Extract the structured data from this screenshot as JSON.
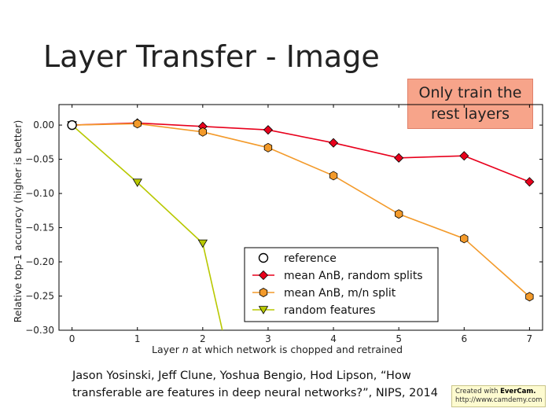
{
  "slide": {
    "title": "Layer Transfer - Image",
    "callout_line1": "Only train the",
    "callout_line2": "rest layers",
    "citation_line1": "Jason Yosinski, Jeff Clune, Yoshua Bengio, Hod Lipson, “How",
    "citation_line2": "transferable are features in deep neural networks?”, NIPS, 2014",
    "watermark_prefix": "Created with ",
    "watermark_brand": "EverCam.",
    "watermark_url": "http://www.camdemy.com",
    "callout_color": "#f7a48a"
  },
  "chart_data": {
    "type": "line",
    "xlabel_prefix": "Layer ",
    "xlabel_var": "n",
    "xlabel_suffix": " at which network is chopped and retrained",
    "ylabel": "Relative top-1 accuracy (higher is better)",
    "xlim": [
      -0.2,
      7.2
    ],
    "ylim": [
      -0.3,
      0.03
    ],
    "x_ticks": [
      0,
      1,
      2,
      3,
      4,
      5,
      6,
      7
    ],
    "x_tick_labels": [
      "0",
      "1",
      "2",
      "3",
      "4",
      "5",
      "6",
      "7"
    ],
    "y_ticks": [
      0.0,
      -0.05,
      -0.1,
      -0.15,
      -0.2,
      -0.25,
      -0.3
    ],
    "y_tick_labels": [
      "0.00",
      "−0.05",
      "−0.10",
      "−0.15",
      "−0.20",
      "−0.25",
      "−0.30"
    ],
    "grid": false,
    "legend_position": "bottom-center",
    "series": [
      {
        "name": "reference",
        "marker": "circle",
        "color": "#ffffff",
        "line_color": "#000000",
        "x": [
          0
        ],
        "y": [
          0.0
        ]
      },
      {
        "name": "mean AnB, random splits",
        "marker": "diamond",
        "color": "#e8001c",
        "line_color": "#e8001c",
        "x": [
          0,
          1,
          2,
          3,
          4,
          5,
          6,
          7
        ],
        "y": [
          0.0,
          0.003,
          -0.002,
          -0.007,
          -0.026,
          -0.048,
          -0.045,
          -0.083
        ]
      },
      {
        "name": "mean AnB, m/n split",
        "marker": "hexagon",
        "color": "#f39a2a",
        "line_color": "#f39a2a",
        "x": [
          0,
          1,
          2,
          3,
          4,
          5,
          6,
          7
        ],
        "y": [
          0.0,
          0.002,
          -0.01,
          -0.033,
          -0.074,
          -0.13,
          -0.166,
          -0.251
        ]
      },
      {
        "name": "random features",
        "marker": "triangle-down",
        "color": "#b8c800",
        "line_color": "#b8c800",
        "x": [
          0,
          1,
          2,
          2.3
        ],
        "y": [
          0.0,
          -0.084,
          -0.173,
          -0.3
        ]
      }
    ]
  }
}
